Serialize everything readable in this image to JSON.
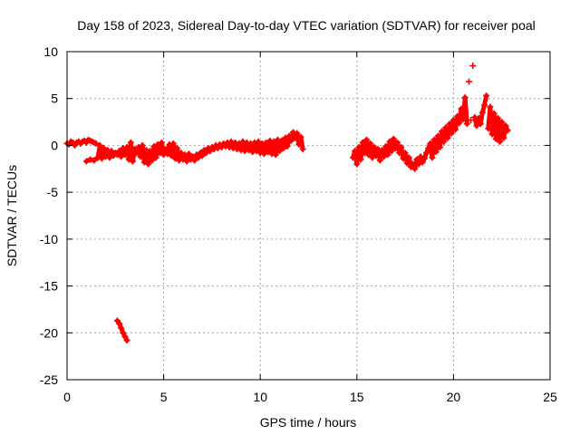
{
  "chart_data": {
    "type": "scatter",
    "title": "Day 158 of 2023, Sidereal Day-to-day VTEC variation (SDTVAR) for receiver poal",
    "xlabel": "GPS time / hours",
    "ylabel": "SDTVAR / TECUs",
    "xlim": [
      0,
      25
    ],
    "ylim": [
      -25,
      10
    ],
    "xticks": [
      "0",
      "5",
      "10",
      "15",
      "20",
      "25"
    ],
    "yticks": [
      "10",
      "5",
      "0",
      "-5",
      "-10",
      "-15",
      "-20",
      "-25"
    ],
    "grid": true,
    "series_color": "#ff0000",
    "marker": "+",
    "series": [
      {
        "name": "SDTVAR",
        "points": [
          [
            0.0,
            0.2
          ],
          [
            0.1,
            0.1
          ],
          [
            0.2,
            0.4
          ],
          [
            0.3,
            0.3
          ],
          [
            0.4,
            0.0
          ],
          [
            0.5,
            0.3
          ],
          [
            0.6,
            0.4
          ],
          [
            0.7,
            0.2
          ],
          [
            0.8,
            0.4
          ],
          [
            0.9,
            0.5
          ],
          [
            1.0,
            0.3
          ],
          [
            1.1,
            0.6
          ],
          [
            1.2,
            0.5
          ],
          [
            1.3,
            0.4
          ],
          [
            1.4,
            0.3
          ],
          [
            1.5,
            0.2
          ],
          [
            1.0,
            -1.7
          ],
          [
            1.2,
            -1.5
          ],
          [
            1.4,
            -1.6
          ],
          [
            1.6,
            -1.3
          ],
          [
            1.7,
            0.0
          ],
          [
            1.8,
            -1.4
          ],
          [
            1.9,
            -0.3
          ],
          [
            2.0,
            -1.2
          ],
          [
            2.1,
            -0.5
          ],
          [
            2.2,
            -1.3
          ],
          [
            2.3,
            -0.6
          ],
          [
            2.4,
            -1.1
          ],
          [
            2.5,
            -0.8
          ],
          [
            2.6,
            -1.0
          ],
          [
            2.7,
            -0.6
          ],
          [
            2.8,
            -1.2
          ],
          [
            2.9,
            -0.3
          ],
          [
            3.0,
            -1.0
          ],
          [
            3.1,
            -0.2
          ],
          [
            3.2,
            -1.5
          ],
          [
            3.3,
            0.3
          ],
          [
            3.4,
            -1.7
          ],
          [
            3.5,
            -0.4
          ],
          [
            3.6,
            -0.8
          ],
          [
            3.7,
            -0.2
          ],
          [
            3.8,
            -1.2
          ],
          [
            3.9,
            0.0
          ],
          [
            4.0,
            -1.8
          ],
          [
            4.1,
            -0.5
          ],
          [
            4.2,
            -2.0
          ],
          [
            4.3,
            -0.6
          ],
          [
            4.4,
            -1.6
          ],
          [
            4.5,
            -0.1
          ],
          [
            4.6,
            -1.3
          ],
          [
            4.7,
            0.1
          ],
          [
            4.8,
            -0.8
          ],
          [
            4.9,
            0.3
          ],
          [
            5.0,
            -1.0
          ],
          [
            5.1,
            -0.4
          ],
          [
            5.2,
            -0.9
          ],
          [
            5.3,
            0.1
          ],
          [
            5.4,
            -1.1
          ],
          [
            5.5,
            0.2
          ],
          [
            5.6,
            -1.4
          ],
          [
            5.7,
            -0.3
          ],
          [
            5.8,
            -1.6
          ],
          [
            5.9,
            -0.8
          ],
          [
            6.0,
            -1.5
          ],
          [
            6.1,
            -1.0
          ],
          [
            6.2,
            -1.7
          ],
          [
            6.3,
            -0.9
          ],
          [
            6.4,
            -1.5
          ],
          [
            6.5,
            -1.2
          ],
          [
            6.6,
            -1.6
          ],
          [
            6.7,
            -1.0
          ],
          [
            6.8,
            -1.3
          ],
          [
            6.9,
            -0.8
          ],
          [
            7.0,
            -1.1
          ],
          [
            7.1,
            -0.5
          ],
          [
            7.2,
            -0.8
          ],
          [
            7.3,
            -0.3
          ],
          [
            7.4,
            -0.6
          ],
          [
            7.5,
            -0.2
          ],
          [
            7.6,
            -0.4
          ],
          [
            7.7,
            0.0
          ],
          [
            7.8,
            -0.3
          ],
          [
            7.9,
            0.1
          ],
          [
            8.0,
            -0.2
          ],
          [
            8.1,
            0.2
          ],
          [
            8.2,
            -0.1
          ],
          [
            8.3,
            0.3
          ],
          [
            8.4,
            -0.2
          ],
          [
            8.5,
            0.4
          ],
          [
            8.6,
            -0.3
          ],
          [
            8.7,
            0.3
          ],
          [
            8.8,
            -0.4
          ],
          [
            8.9,
            0.2
          ],
          [
            9.0,
            -0.5
          ],
          [
            9.1,
            0.4
          ],
          [
            9.2,
            -0.6
          ],
          [
            9.3,
            0.3
          ],
          [
            9.4,
            -0.5
          ],
          [
            9.5,
            0.2
          ],
          [
            9.6,
            -0.7
          ],
          [
            9.7,
            0.3
          ],
          [
            9.8,
            -0.6
          ],
          [
            9.9,
            0.4
          ],
          [
            10.0,
            -0.8
          ],
          [
            10.1,
            0.2
          ],
          [
            10.2,
            -0.9
          ],
          [
            10.3,
            0.3
          ],
          [
            10.4,
            -0.7
          ],
          [
            10.5,
            0.5
          ],
          [
            10.6,
            -0.9
          ],
          [
            10.7,
            0.4
          ],
          [
            10.8,
            -1.0
          ],
          [
            10.9,
            0.6
          ],
          [
            11.0,
            -0.6
          ],
          [
            11.1,
            0.5
          ],
          [
            11.2,
            -0.3
          ],
          [
            11.3,
            0.8
          ],
          [
            11.4,
            -0.1
          ],
          [
            11.5,
            1.0
          ],
          [
            11.6,
            0.5
          ],
          [
            11.7,
            1.4
          ],
          [
            11.8,
            0.8
          ],
          [
            11.9,
            1.3
          ],
          [
            12.0,
            0.1
          ],
          [
            12.1,
            0.9
          ],
          [
            12.2,
            -0.4
          ],
          [
            2.6,
            -18.7
          ],
          [
            2.7,
            -19.0
          ],
          [
            2.8,
            -19.5
          ],
          [
            2.9,
            -20.0
          ],
          [
            3.0,
            -20.4
          ],
          [
            3.1,
            -20.8
          ],
          [
            14.8,
            -1.3
          ],
          [
            14.9,
            -0.6
          ],
          [
            15.0,
            -2.0
          ],
          [
            15.1,
            -0.2
          ],
          [
            15.2,
            -1.5
          ],
          [
            15.3,
            0.3
          ],
          [
            15.4,
            -0.8
          ],
          [
            15.5,
            0.6
          ],
          [
            15.6,
            -1.0
          ],
          [
            15.7,
            0.2
          ],
          [
            15.8,
            -1.3
          ],
          [
            15.9,
            -0.2
          ],
          [
            16.0,
            -1.1
          ],
          [
            16.1,
            -0.4
          ],
          [
            16.2,
            -1.6
          ],
          [
            16.3,
            -0.5
          ],
          [
            16.4,
            -1.2
          ],
          [
            16.5,
            -0.1
          ],
          [
            16.6,
            -1.0
          ],
          [
            16.7,
            0.4
          ],
          [
            16.8,
            -0.6
          ],
          [
            16.9,
            0.7
          ],
          [
            17.0,
            -0.3
          ],
          [
            17.1,
            0.3
          ],
          [
            17.2,
            -0.8
          ],
          [
            17.3,
            -0.2
          ],
          [
            17.4,
            -1.4
          ],
          [
            17.5,
            -0.8
          ],
          [
            17.6,
            -1.9
          ],
          [
            17.7,
            -1.3
          ],
          [
            17.8,
            -2.3
          ],
          [
            17.9,
            -2.0
          ],
          [
            18.0,
            -2.5
          ],
          [
            18.1,
            -1.5
          ],
          [
            18.2,
            -2.0
          ],
          [
            18.3,
            -1.2
          ],
          [
            18.4,
            -1.8
          ],
          [
            18.5,
            -1.4
          ],
          [
            18.6,
            -0.8
          ],
          [
            18.7,
            -0.3
          ],
          [
            18.8,
            0.2
          ],
          [
            18.9,
            -1.3
          ],
          [
            19.0,
            0.6
          ],
          [
            19.1,
            -0.7
          ],
          [
            19.2,
            1.0
          ],
          [
            19.3,
            -0.2
          ],
          [
            19.4,
            1.5
          ],
          [
            19.5,
            0.4
          ],
          [
            19.6,
            1.9
          ],
          [
            19.7,
            0.8
          ],
          [
            19.8,
            2.3
          ],
          [
            19.9,
            1.3
          ],
          [
            20.0,
            2.7
          ],
          [
            20.1,
            1.7
          ],
          [
            20.2,
            3.1
          ],
          [
            20.3,
            2.4
          ],
          [
            20.4,
            3.9
          ],
          [
            20.5,
            2.8
          ],
          [
            20.6,
            5.1
          ],
          [
            20.7,
            2.3
          ],
          [
            20.8,
            6.8
          ],
          [
            20.9,
            2.7
          ],
          [
            21.0,
            8.5
          ],
          [
            21.1,
            3.0
          ],
          [
            21.2,
            2.1
          ],
          [
            21.3,
            2.9
          ],
          [
            21.4,
            2.3
          ],
          [
            21.5,
            3.5
          ],
          [
            21.6,
            4.3
          ],
          [
            21.7,
            5.3
          ],
          [
            21.8,
            1.8
          ],
          [
            21.9,
            4.1
          ],
          [
            22.0,
            1.2
          ],
          [
            22.1,
            3.4
          ],
          [
            22.2,
            0.7
          ],
          [
            22.3,
            2.9
          ],
          [
            22.4,
            0.4
          ],
          [
            22.5,
            2.5
          ],
          [
            22.6,
            0.8
          ],
          [
            22.7,
            2.1
          ],
          [
            22.8,
            1.6
          ]
        ]
      }
    ]
  }
}
